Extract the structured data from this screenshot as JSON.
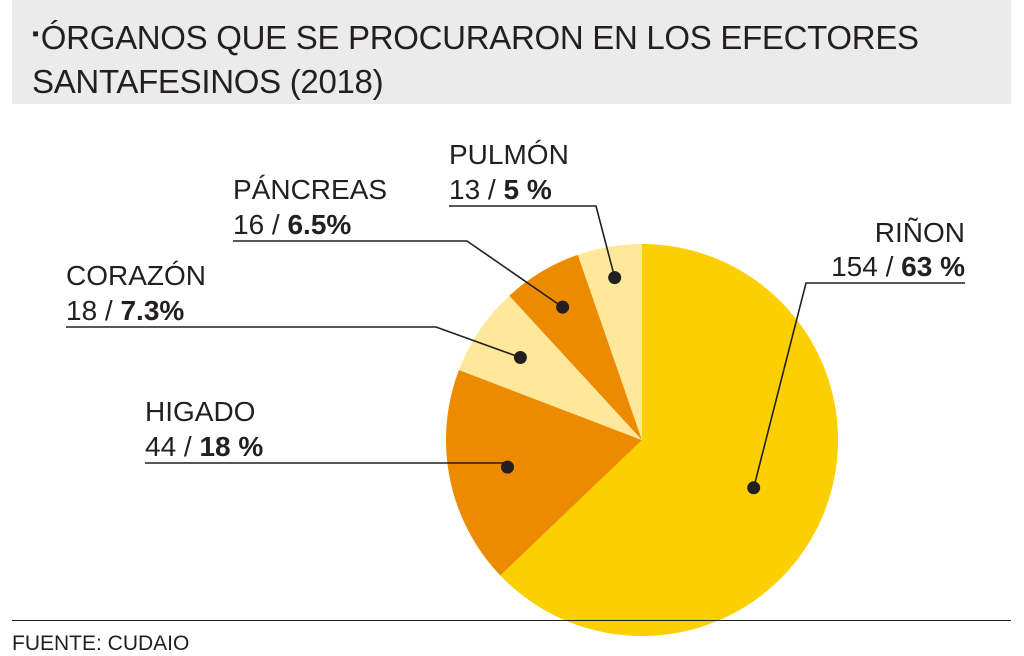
{
  "header": {
    "title_line1": "ÓRGANOS QUE SE PROCURARON EN LOS EFECTORES",
    "title_line2": "SANTAFESINOS (2018)"
  },
  "source": "FUENTE: CUDAIO",
  "chart_data": {
    "type": "pie",
    "title": "ÓRGANOS QUE SE PROCURARON EN LOS EFECTORES SANTAFESINOS (2018)",
    "slices": [
      {
        "label": "RIÑON",
        "value": 154,
        "percent_label": "63 %",
        "color": "#fccf00"
      },
      {
        "label": "HIGADO",
        "value": 44,
        "percent_label": "18 %",
        "color": "#ed8b00"
      },
      {
        "label": "CORAZÓN",
        "value": 18,
        "percent_label": "7.3%",
        "color": "#ffe89a"
      },
      {
        "label": "PÁNCREAS",
        "value": 16,
        "percent_label": "6.5%",
        "color": "#ed8b00"
      },
      {
        "label": "PULMÓN",
        "value": 13,
        "percent_label": "5 %",
        "color": "#ffe89a"
      }
    ]
  }
}
